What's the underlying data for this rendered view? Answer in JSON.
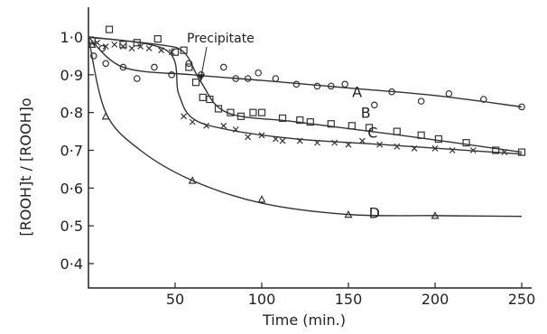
{
  "chart_data": {
    "type": "scatter",
    "title": "",
    "xlabel": "Time (min.)",
    "ylabel": "[ROOH]t / [ROOH]o",
    "xlim": [
      0,
      260
    ],
    "ylim": [
      0.4,
      1.05
    ],
    "xticks": [
      {
        "v": 50,
        "label": "50"
      },
      {
        "v": 100,
        "label": "100"
      },
      {
        "v": 150,
        "label": "150"
      },
      {
        "v": 200,
        "label": "200"
      },
      {
        "v": 250,
        "label": "250"
      }
    ],
    "yticks": [
      {
        "v": 1.0,
        "label": "1·0"
      },
      {
        "v": 0.9,
        "label": "0·9"
      },
      {
        "v": 0.8,
        "label": "0·8"
      },
      {
        "v": 0.7,
        "label": "0·7"
      },
      {
        "v": 0.6,
        "label": "0·6"
      },
      {
        "v": 0.5,
        "label": "0·5"
      },
      {
        "v": 0.4,
        "label": "0·4"
      }
    ],
    "annotation": {
      "text": "Precipitate",
      "x": 65,
      "y": 0.88
    },
    "series": [
      {
        "name": "A",
        "marker": "circle",
        "label_at": [
          155,
          0.855
        ],
        "points": [
          [
            3,
            0.95
          ],
          [
            8,
            0.97
          ],
          [
            10,
            0.93
          ],
          [
            20,
            0.92
          ],
          [
            28,
            0.89
          ],
          [
            38,
            0.92
          ],
          [
            48,
            0.9
          ],
          [
            58,
            0.93
          ],
          [
            65,
            0.9
          ],
          [
            78,
            0.92
          ],
          [
            85,
            0.89
          ],
          [
            92,
            0.89
          ],
          [
            98,
            0.905
          ],
          [
            108,
            0.89
          ],
          [
            120,
            0.875
          ],
          [
            132,
            0.87
          ],
          [
            140,
            0.87
          ],
          [
            148,
            0.875
          ],
          [
            165,
            0.82
          ],
          [
            175,
            0.855
          ],
          [
            192,
            0.83
          ],
          [
            208,
            0.85
          ],
          [
            228,
            0.835
          ],
          [
            250,
            0.815
          ]
        ],
        "curve": [
          [
            0,
            1.0
          ],
          [
            20,
            0.92
          ],
          [
            60,
            0.9
          ],
          [
            100,
            0.885
          ],
          [
            150,
            0.865
          ],
          [
            200,
            0.845
          ],
          [
            250,
            0.815
          ]
        ]
      },
      {
        "name": "B",
        "marker": "square",
        "label_at": [
          160,
          0.8
        ],
        "points": [
          [
            2,
            0.99
          ],
          [
            12,
            1.02
          ],
          [
            20,
            0.98
          ],
          [
            28,
            0.985
          ],
          [
            40,
            0.995
          ],
          [
            50,
            0.96
          ],
          [
            55,
            0.965
          ],
          [
            58,
            0.92
          ],
          [
            62,
            0.88
          ],
          [
            66,
            0.84
          ],
          [
            70,
            0.835
          ],
          [
            75,
            0.81
          ],
          [
            82,
            0.8
          ],
          [
            88,
            0.79
          ],
          [
            95,
            0.8
          ],
          [
            100,
            0.8
          ],
          [
            112,
            0.785
          ],
          [
            122,
            0.78
          ],
          [
            128,
            0.775
          ],
          [
            140,
            0.77
          ],
          [
            152,
            0.765
          ],
          [
            162,
            0.76
          ],
          [
            178,
            0.75
          ],
          [
            192,
            0.74
          ],
          [
            202,
            0.73
          ],
          [
            218,
            0.72
          ],
          [
            235,
            0.7
          ],
          [
            250,
            0.695
          ]
        ],
        "curve": [
          [
            0,
            1.0
          ],
          [
            40,
            0.98
          ],
          [
            55,
            0.96
          ],
          [
            65,
            0.88
          ],
          [
            80,
            0.8
          ],
          [
            120,
            0.775
          ],
          [
            180,
            0.74
          ],
          [
            250,
            0.695
          ]
        ]
      },
      {
        "name": "C",
        "marker": "cross",
        "label_at": [
          164,
          0.748
        ],
        "points": [
          [
            5,
            0.985
          ],
          [
            10,
            0.975
          ],
          [
            15,
            0.98
          ],
          [
            20,
            0.975
          ],
          [
            25,
            0.97
          ],
          [
            30,
            0.975
          ],
          [
            35,
            0.97
          ],
          [
            42,
            0.965
          ],
          [
            48,
            0.96
          ],
          [
            55,
            0.79
          ],
          [
            60,
            0.775
          ],
          [
            68,
            0.765
          ],
          [
            78,
            0.765
          ],
          [
            85,
            0.755
          ],
          [
            92,
            0.735
          ],
          [
            100,
            0.74
          ],
          [
            108,
            0.73
          ],
          [
            112,
            0.725
          ],
          [
            122,
            0.725
          ],
          [
            132,
            0.72
          ],
          [
            142,
            0.72
          ],
          [
            150,
            0.715
          ],
          [
            158,
            0.725
          ],
          [
            168,
            0.715
          ],
          [
            178,
            0.71
          ],
          [
            188,
            0.705
          ],
          [
            200,
            0.705
          ],
          [
            210,
            0.7
          ],
          [
            222,
            0.7
          ],
          [
            240,
            0.695
          ]
        ],
        "curve": [
          [
            0,
            1.0
          ],
          [
            45,
            0.965
          ],
          [
            52,
            0.85
          ],
          [
            60,
            0.785
          ],
          [
            80,
            0.755
          ],
          [
            120,
            0.73
          ],
          [
            170,
            0.715
          ],
          [
            250,
            0.69
          ]
        ]
      },
      {
        "name": "D",
        "marker": "triangle",
        "label_at": [
          165,
          0.535
        ],
        "points": [
          [
            2,
            0.98
          ],
          [
            10,
            0.79
          ],
          [
            60,
            0.62
          ],
          [
            100,
            0.57
          ],
          [
            150,
            0.53
          ],
          [
            200,
            0.527
          ]
        ],
        "curve": [
          [
            0,
            1.0
          ],
          [
            10,
            0.8
          ],
          [
            30,
            0.7
          ],
          [
            60,
            0.62
          ],
          [
            100,
            0.56
          ],
          [
            150,
            0.53
          ],
          [
            200,
            0.527
          ],
          [
            250,
            0.525
          ]
        ]
      }
    ]
  }
}
